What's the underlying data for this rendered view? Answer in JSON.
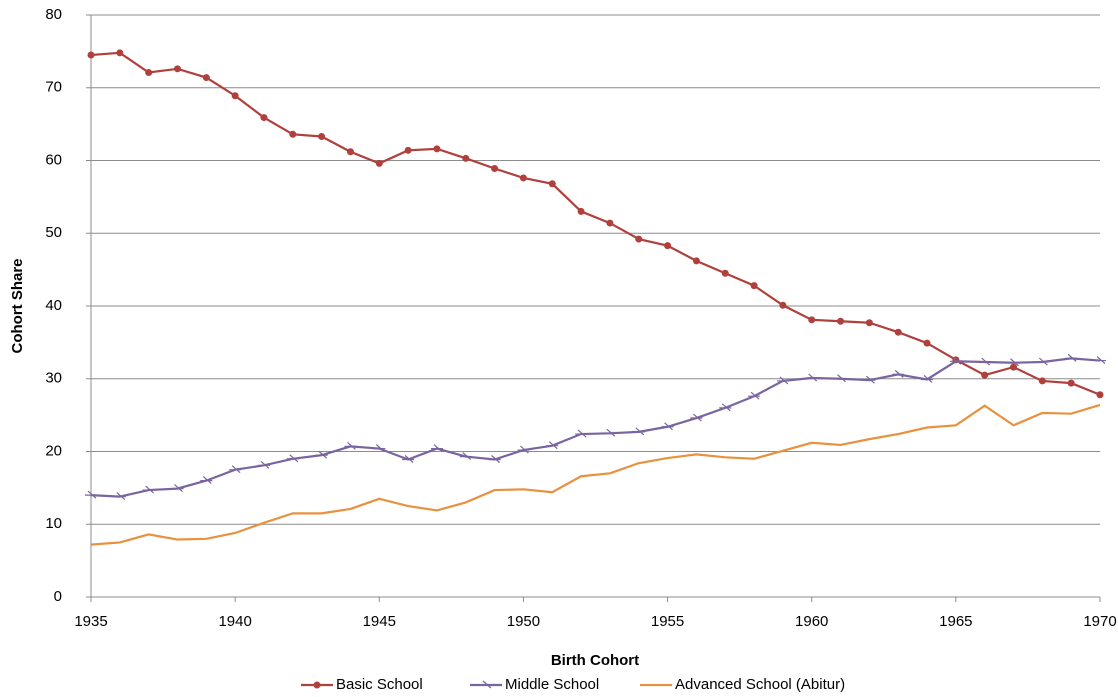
{
  "chart_data": {
    "type": "line",
    "xlabel": "Birth Cohort",
    "ylabel": "Cohort Share",
    "x": [
      1935,
      1936,
      1937,
      1938,
      1939,
      1940,
      1941,
      1942,
      1943,
      1944,
      1945,
      1946,
      1947,
      1948,
      1949,
      1950,
      1951,
      1952,
      1953,
      1954,
      1955,
      1956,
      1957,
      1958,
      1959,
      1960,
      1961,
      1962,
      1963,
      1964,
      1965,
      1966,
      1967,
      1968,
      1969,
      1970
    ],
    "series": [
      {
        "name": "Basic School",
        "color": "#b0403c",
        "marker": "circle",
        "values": [
          74.5,
          74.8,
          72.1,
          72.6,
          71.4,
          68.9,
          65.9,
          63.6,
          63.3,
          61.2,
          59.6,
          61.4,
          61.6,
          60.3,
          58.9,
          57.6,
          56.8,
          53.0,
          51.4,
          49.2,
          48.3,
          46.2,
          44.5,
          42.8,
          40.1,
          38.1,
          37.9,
          37.7,
          36.4,
          34.9,
          32.6,
          30.5,
          31.6,
          29.7,
          29.4,
          27.8
        ]
      },
      {
        "name": "Middle School",
        "color": "#7a64a0",
        "marker": "tick",
        "values": [
          14.0,
          13.8,
          14.7,
          14.9,
          16.0,
          17.5,
          18.1,
          19.0,
          19.5,
          20.7,
          20.4,
          18.9,
          20.4,
          19.3,
          18.9,
          20.2,
          20.8,
          22.4,
          22.5,
          22.7,
          23.4,
          24.6,
          26.0,
          27.6,
          29.7,
          30.1,
          30.0,
          29.8,
          30.6,
          29.9,
          32.4,
          32.3,
          32.2,
          32.3,
          32.8,
          32.5
        ]
      },
      {
        "name": "Advanced School (Abitur)",
        "color": "#e8913e",
        "marker": "none",
        "values": [
          7.2,
          7.5,
          8.6,
          7.9,
          8.0,
          8.8,
          10.2,
          11.5,
          11.5,
          12.1,
          13.5,
          12.5,
          11.9,
          13.0,
          14.7,
          14.8,
          14.4,
          16.6,
          17.0,
          18.4,
          19.1,
          19.6,
          19.2,
          19.0,
          20.1,
          21.2,
          20.9,
          21.7,
          22.4,
          23.3,
          23.6,
          26.3,
          23.6,
          25.3,
          25.2,
          26.4
        ]
      }
    ],
    "xlim": [
      1935,
      1970
    ],
    "xticks": [
      1935,
      1940,
      1945,
      1950,
      1955,
      1960,
      1965,
      1970
    ],
    "ylim": [
      0,
      80
    ],
    "yticks": [
      0,
      10,
      20,
      30,
      40,
      50,
      60,
      70,
      80
    ],
    "grid": true,
    "legend": "bottom"
  }
}
